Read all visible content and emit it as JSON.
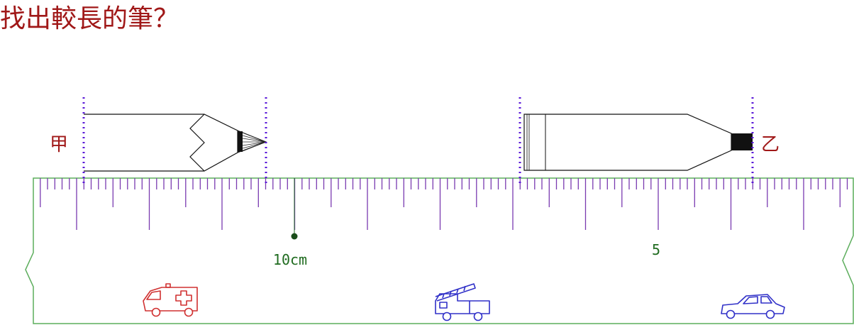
{
  "question": "找出較長的筆？",
  "pens": [
    {
      "label": "甲",
      "left_end": 0,
      "right_end": 2.5
    },
    {
      "label": "乙",
      "left_end": 6.0,
      "right_end": 9.2
    }
  ],
  "ruler": {
    "main_label": "10cm",
    "mid_label": "5",
    "labels_at": [
      3,
      8
    ],
    "range_cm": [
      -0.6,
      10.6
    ],
    "minor_per_cm": 10
  },
  "vehicles": [
    "ambulance-icon",
    "fire-truck-icon",
    "car-icon"
  ],
  "colors": {
    "title": "#a01818",
    "ruler_border": "#5cad5c",
    "ticks": "#7a3ab0",
    "guide": "#5a18d8",
    "label": "#1f6b1f",
    "ambulance": "#d03030",
    "fire_truck": "#3030c8",
    "car": "#3030c8"
  }
}
